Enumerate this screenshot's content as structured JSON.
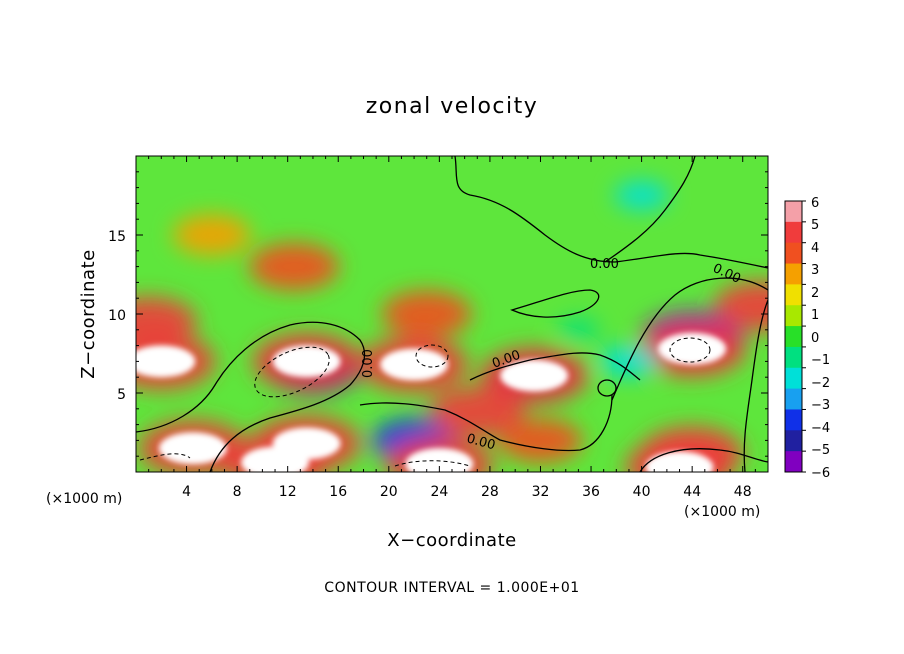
{
  "chart_data": {
    "type": "heatmap",
    "title": "zonal velocity",
    "xlabel": "X−coordinate",
    "ylabel": "Z−coordinate",
    "x_units": "(×1000 m)",
    "x_units_right": "(×1000 m)",
    "xlim": [
      0,
      50
    ],
    "ylim": [
      0,
      20
    ],
    "xticks": [
      4,
      8,
      12,
      16,
      20,
      24,
      28,
      32,
      36,
      40,
      44,
      48
    ],
    "xtick_labels": [
      "4",
      "8",
      "12",
      "16",
      "20",
      "24",
      "28",
      "32",
      "36",
      "40",
      "44",
      "48"
    ],
    "yticks": [
      5,
      10,
      15
    ],
    "ytick_labels": [
      "5",
      "10",
      "15"
    ],
    "colorbar": {
      "min": -6,
      "max": 6,
      "ticks": [
        6,
        5,
        4,
        3,
        2,
        1,
        0,
        -1,
        -2,
        -3,
        -4,
        -5,
        -6
      ],
      "tick_labels": [
        "6",
        "5",
        "4",
        "3",
        "2",
        "1",
        "0",
        "−1",
        "−2",
        "−3",
        "−4",
        "−5",
        "−6"
      ],
      "colors": [
        "#f4a0a8",
        "#f03c3c",
        "#f05020",
        "#f5a000",
        "#f0e000",
        "#a8e800",
        "#28e028",
        "#00e080",
        "#00e0d8",
        "#18a0f0",
        "#1030e8",
        "#2020a0",
        "#8000c0"
      ]
    },
    "contour_labels": [
      "0.00",
      "0.00",
      "0.00",
      "0.00",
      "0.00"
    ],
    "contour_interval_text": "CONTOUR INTERVAL = 1.000E+01",
    "features": [
      {
        "x": 2,
        "z": 7,
        "u": 7
      },
      {
        "x": 1,
        "z": 9.5,
        "u": 5
      },
      {
        "x": 4.5,
        "z": 1.5,
        "u": 7
      },
      {
        "x": 11,
        "z": 0.6,
        "u": 6.5
      },
      {
        "x": 13.5,
        "z": 1.8,
        "u": 7
      },
      {
        "x": 22,
        "z": 6.8,
        "u": 7
      },
      {
        "x": 23,
        "z": 10,
        "u": 4.5
      },
      {
        "x": 12.5,
        "z": 13,
        "u": 4.5
      },
      {
        "x": 6,
        "z": 15,
        "u": 3.5
      },
      {
        "x": 14,
        "z": 6.5,
        "u": -5
      },
      {
        "x": 13.5,
        "z": 7,
        "u": 7
      },
      {
        "x": 22,
        "z": 2,
        "u": -4
      },
      {
        "x": 24,
        "z": 0.5,
        "u": 7
      },
      {
        "x": 31.5,
        "z": 6,
        "u": -4.5
      },
      {
        "x": 31.5,
        "z": 6.1,
        "u": 7
      },
      {
        "x": 27,
        "z": 3.8,
        "u": 5
      },
      {
        "x": 32,
        "z": 2,
        "u": 4
      },
      {
        "x": 44,
        "z": 8.5,
        "u": -5.5
      },
      {
        "x": 44,
        "z": 7.8,
        "u": 7
      },
      {
        "x": 44,
        "z": 1.2,
        "u": 5.5
      },
      {
        "x": 43,
        "z": 0.3,
        "u": 7
      },
      {
        "x": 39,
        "z": 7,
        "u": -2
      },
      {
        "x": 49.5,
        "z": 10.5,
        "u": 5
      },
      {
        "x": 40,
        "z": 17.5,
        "u": -1.5
      },
      {
        "x": 35,
        "z": 9,
        "u": -0.5
      }
    ]
  }
}
